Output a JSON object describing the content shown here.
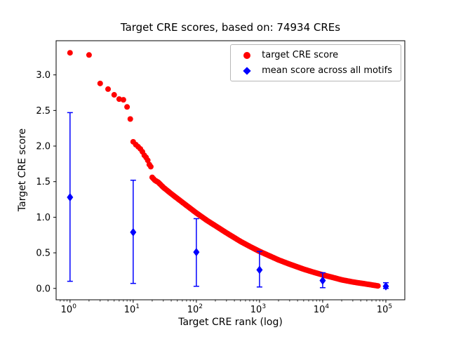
{
  "title": "Target CRE scores, based on: 74934 CREs",
  "axes": {
    "xlabel": "Target CRE rank (log)",
    "ylabel": "Target CRE score",
    "x_scale": "log",
    "x_tick_exponents": [
      0,
      1,
      2,
      3,
      4,
      5
    ],
    "y_ticks": [
      "0.0",
      "0.5",
      "1.0",
      "1.5",
      "2.0",
      "2.5",
      "3.0"
    ],
    "x_range_log": [
      -0.22,
      5.3
    ],
    "y_range": [
      -0.16,
      3.48
    ]
  },
  "legend": {
    "entries": [
      {
        "label": "target CRE score",
        "marker": "red-dot-icon",
        "color": "#ff0000"
      },
      {
        "label": "mean score across all motifs",
        "marker": "blue-diamond-icon",
        "color": "#0000ff"
      }
    ]
  },
  "chart_data": {
    "type": "scatter",
    "title": "Target CRE scores, based on: 74934 CREs",
    "xlabel": "Target CRE rank (log)",
    "ylabel": "Target CRE score",
    "x_scale": "log",
    "xlim": [
      0.6,
      200000
    ],
    "ylim": [
      -0.16,
      3.48
    ],
    "legend_position": "upper right",
    "grid": false,
    "total_points": 74934,
    "series": [
      {
        "name": "target CRE score",
        "marker": "circle",
        "color": "#ff0000",
        "description": "monotonically decreasing CRE score vs rank; anchor points sampled from the dense curve of 74934 points",
        "anchor_ranks": [
          1,
          2,
          3,
          4,
          5,
          6,
          7,
          8,
          9,
          10,
          11,
          12,
          13,
          14,
          15,
          16,
          17,
          18,
          19,
          20,
          22,
          25,
          30,
          40,
          60,
          100,
          150,
          200,
          300,
          500,
          700,
          1000,
          1500,
          2000,
          3000,
          5000,
          7000,
          10000,
          15000,
          20000,
          30000,
          50000,
          74934
        ],
        "anchor_scores": [
          3.31,
          3.28,
          2.88,
          2.8,
          2.72,
          2.66,
          2.65,
          2.55,
          2.38,
          2.06,
          2.02,
          1.99,
          1.96,
          1.92,
          1.87,
          1.84,
          1.8,
          1.74,
          1.71,
          1.56,
          1.52,
          1.49,
          1.42,
          1.33,
          1.21,
          1.06,
          0.95,
          0.88,
          0.78,
          0.66,
          0.59,
          0.52,
          0.45,
          0.4,
          0.34,
          0.27,
          0.23,
          0.19,
          0.15,
          0.12,
          0.09,
          0.06,
          0.035
        ]
      },
      {
        "name": "mean score across all motifs",
        "marker": "diamond",
        "color": "#0000ff",
        "x": [
          1,
          10,
          100,
          1000,
          10000,
          100000
        ],
        "mean": [
          1.28,
          0.79,
          0.51,
          0.26,
          0.11,
          0.03
        ],
        "err_low": [
          0.1,
          0.07,
          0.03,
          0.02,
          0.01,
          0.0
        ],
        "err_high": [
          2.47,
          1.52,
          0.98,
          0.52,
          0.22,
          0.08
        ]
      }
    ]
  }
}
